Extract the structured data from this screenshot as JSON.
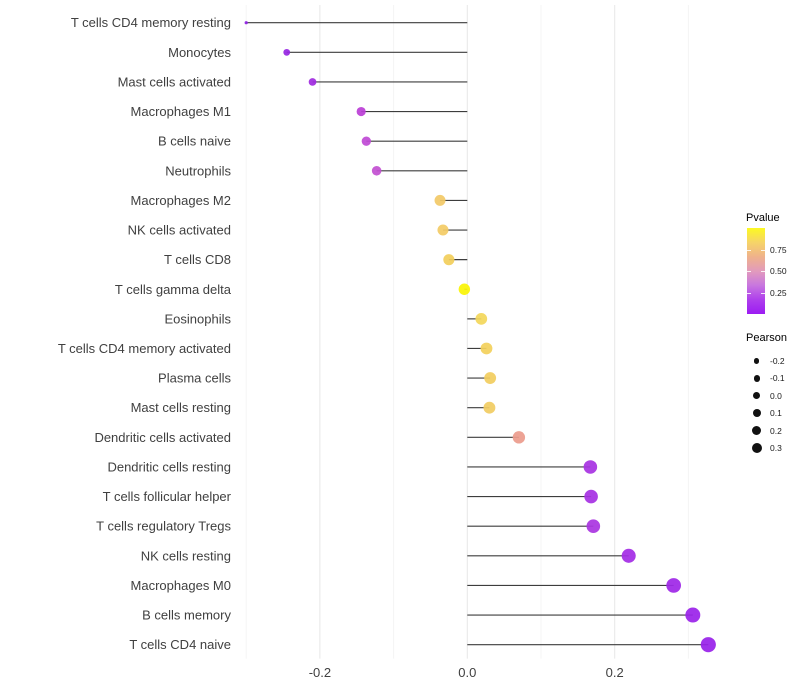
{
  "chart_data": {
    "type": "scatter",
    "style": "lollipop",
    "orientation": "horizontal",
    "title": "",
    "xlabel": "",
    "ylabel": "",
    "grid": true,
    "xlim": [
      -0.3125,
      0.3465
    ],
    "x_tick_labels": [
      "-0.2",
      "0.0",
      "0.2"
    ],
    "x_tick_values": [
      -0.2,
      0.0,
      0.2
    ],
    "x_minor_tick_values": [
      -0.3,
      -0.1,
      0.1,
      0.3
    ],
    "stem_color": "#3d3d3d",
    "categories": [
      "T cells CD4 memory resting",
      "Monocytes",
      "Mast cells activated",
      "Macrophages M1",
      "B cells naive",
      "Neutrophils",
      "Macrophages M2",
      "NK cells activated",
      "T cells CD8",
      "T cells gamma delta",
      "Eosinophils",
      "T cells CD4 memory activated",
      "Plasma cells",
      "Mast cells resting",
      "Dendritic cells activated",
      "Dendritic cells resting",
      "T cells follicular helper",
      "T cells regulatory  Tregs",
      "NK cells resting",
      "Macrophages M0",
      "B cells memory",
      "T cells CD4 naive"
    ],
    "series": [
      {
        "name": "Pearson correlation",
        "values": [
          -0.3,
          -0.245,
          -0.21,
          -0.144,
          -0.137,
          -0.123,
          -0.037,
          -0.033,
          -0.025,
          -0.004,
          0.019,
          0.026,
          0.031,
          0.03,
          0.07,
          0.167,
          0.168,
          0.171,
          0.219,
          0.28,
          0.306,
          0.327
        ]
      }
    ],
    "point_colors": [
      "#8F21E3",
      "#9728E2",
      "#A02CE0",
      "#BB3FD6",
      "#C04AD5",
      "#C351D2",
      "#F2C968",
      "#F3CB66",
      "#F2CF5D",
      "#FAF406",
      "#F3D75B",
      "#F3D15C",
      "#F2CD60",
      "#F1CC63",
      "#EC9C8D",
      "#A834E2",
      "#A732E3",
      "#AA36E1",
      "#A42DE5",
      "#9F28E7",
      "#9B24E9",
      "#9922EA"
    ]
  },
  "legends": {
    "pvalue": {
      "title": "Pvalue",
      "tick_labels": [
        "0.75",
        "0.50",
        "0.25"
      ],
      "tick_values": [
        0.75,
        0.5,
        0.25
      ],
      "range": [
        0,
        1
      ],
      "gradient_top_to_bottom": [
        "#FCF921",
        "#F6D468",
        "#EFB28B",
        "#E29BBC",
        "#C877DF",
        "#AE3FEC",
        "#9C1CF2"
      ]
    },
    "pearson": {
      "title": "Pearson",
      "items": [
        {
          "label": "-0.2",
          "value": -0.2
        },
        {
          "label": "-0.1",
          "value": -0.1
        },
        {
          "label": "0.0",
          "value": 0.0
        },
        {
          "label": "0.1",
          "value": 0.1
        },
        {
          "label": "0.2",
          "value": 0.2
        },
        {
          "label": "0.3",
          "value": 0.3
        }
      ]
    }
  },
  "colors": {
    "background": "#ffffff",
    "grid_major": "#e7e7e7",
    "grid_minor": "#f4f4f4",
    "axis_text": "#404040",
    "stem": "#3d3d3d",
    "legend_dot": "#111111"
  }
}
